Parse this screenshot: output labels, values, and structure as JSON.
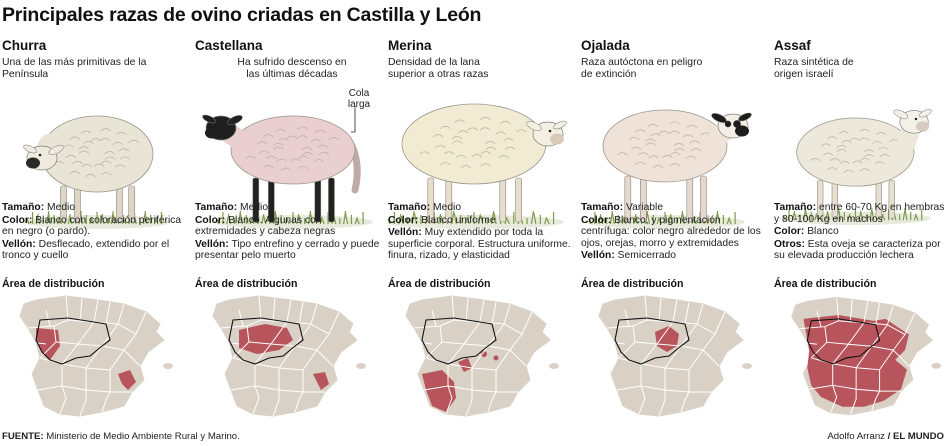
{
  "title": "Principales razas de ovino criadas en Castilla y León",
  "breeds": [
    {
      "name": "Churra",
      "description": "Una de las más primitivas de la Península",
      "attrs": [
        {
          "label": "Tamaño:",
          "value": "Medio"
        },
        {
          "label": "Color:",
          "value": "Blanco con coloración periférica en negro (o pardo)."
        },
        {
          "label": "Vellón:",
          "value": "Desflecado, extendido por el tronco y cuello"
        }
      ],
      "dist_label": "Área de distribución",
      "fleece_color": "#e8e4d6",
      "head_color": "#eeeadf",
      "muzzle_color": "#2a2a2a",
      "leg_color": "#dcd6c6"
    },
    {
      "name": "Castellana",
      "description": "Ha sufrido descenso en las últimas décadas",
      "callout": "Cola larga",
      "attrs": [
        {
          "label": "Tamaño:",
          "value": "Medio"
        },
        {
          "label": "Color:",
          "value": "Blanco. Algunas con extremidades y cabeza negras"
        },
        {
          "label": "Vellón:",
          "value": "Tipo entrefino y cerrado y puede presentar pelo muerto"
        }
      ],
      "dist_label": "Área de distribución",
      "fleece_color": "#e9cfd0",
      "head_color": "#1f1f1f",
      "muzzle_color": "#1f1f1f",
      "leg_color": "#222222"
    },
    {
      "name": "Merina",
      "description": "Densidad de la lana superior a otras razas",
      "attrs": [
        {
          "label": "Tamaño:",
          "value": "Medio"
        },
        {
          "label": "Color:",
          "value": "Blanco uniforme"
        },
        {
          "label": "Vellón:",
          "value": "Muy extendido por toda la superficie corporal. Estructura uniforme. finura, rizado, y elasticidad"
        }
      ],
      "dist_label": "Área de distribución",
      "fleece_color": "#f1ebd3",
      "head_color": "#f3efe2",
      "muzzle_color": "#d9c9b8",
      "leg_color": "#e6dfcc"
    },
    {
      "name": "Ojalada",
      "description": "Raza autóctona en peligro de extinción",
      "attrs": [
        {
          "label": "Tamaño:",
          "value": "Variable"
        },
        {
          "label": "Color:",
          "value": "Blanco, y pigmentación centrífuga: color negro alrededor de los ojos, orejas, morro y extremidades"
        },
        {
          "label": "Vellón:",
          "value": "Semicerrado"
        }
      ],
      "dist_label": "Área de distribución",
      "fleece_color": "#efe2d9",
      "head_color": "#f2eee6",
      "muzzle_color": "#1d1d1d",
      "leg_color": "#e4d8cf"
    },
    {
      "name": "Assaf",
      "description": "Raza sintética de origen israelí",
      "attrs": [
        {
          "label": "Tamaño:",
          "value": "entre 60-70 Kg en hembras y 80-100 Kg en machos"
        },
        {
          "label": "Color:",
          "value": "Blanco"
        },
        {
          "label": "Otros:",
          "value": "Esta oveja se caracteriza por su elevada producción lechera"
        }
      ],
      "dist_label": "Área de distribución",
      "fleece_color": "#ece8dc",
      "head_color": "#f4f1ea",
      "muzzle_color": "#d8cbbf",
      "leg_color": "#e6e0d3"
    }
  ],
  "source_label": "FUENTE:",
  "source_text": "Ministerio de Medio Ambiente Rural y Marino.",
  "credit_author": "Adolfo Arranz",
  "credit_separator": "/",
  "credit_outlet": "EL MUNDO",
  "colors": {
    "map_land": "#d9d1c5",
    "map_border": "#ffffff",
    "map_highlight": "#b8545c",
    "map_cyl_outline": "#111111",
    "grass": "#7d9a4a"
  }
}
